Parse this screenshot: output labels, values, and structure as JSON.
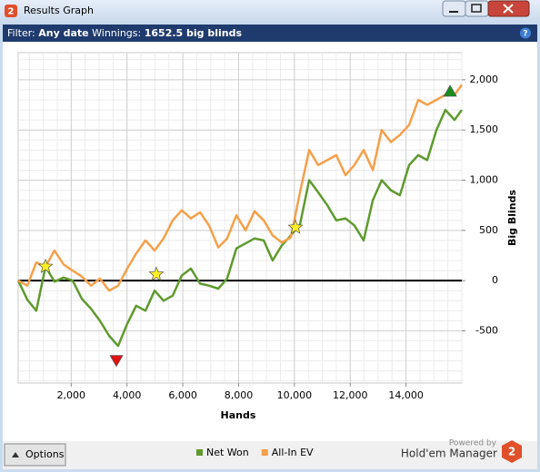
{
  "window": {
    "title": "Results Graph"
  },
  "filter": {
    "label": "Filter:",
    "date": "Any date",
    "winnings_label": "Winnings:",
    "winnings": "1652.5 big blinds"
  },
  "chart_data": {
    "type": "line",
    "x_label": "Hands",
    "y_label": "Big Blinds",
    "x": [
      100,
      430,
      750,
      1080,
      1400,
      1730,
      2050,
      2380,
      2710,
      3030,
      3360,
      3680,
      4010,
      4330,
      4660,
      4990,
      5310,
      5640,
      5960,
      6290,
      6620,
      6940,
      7270,
      7590,
      7920,
      8250,
      8570,
      8900,
      9220,
      9550,
      9870,
      10200,
      10530,
      10850,
      11180,
      11500,
      11830,
      12150,
      12480,
      12810,
      13130,
      13460,
      13780,
      14110,
      14440,
      14760,
      15090,
      15410,
      15740,
      16000
    ],
    "series": [
      {
        "name": "Net Won",
        "color": "#5f9a2f",
        "values": [
          0,
          -190,
          -300,
          140,
          -10,
          30,
          0,
          -180,
          -280,
          -400,
          -550,
          -650,
          -430,
          -250,
          -300,
          -100,
          -200,
          -150,
          50,
          120,
          -30,
          -50,
          -80,
          20,
          320,
          370,
          420,
          400,
          200,
          350,
          450,
          560,
          1000,
          880,
          750,
          600,
          620,
          550,
          400,
          800,
          1000,
          900,
          850,
          1150,
          1250,
          1200,
          1500,
          1700,
          1600,
          1700
        ]
      },
      {
        "name": "All-In EV",
        "color": "#f5a04a",
        "values": [
          0,
          -50,
          180,
          140,
          300,
          160,
          100,
          40,
          -50,
          20,
          -100,
          -50,
          120,
          270,
          400,
          300,
          420,
          600,
          700,
          620,
          680,
          550,
          330,
          420,
          650,
          500,
          690,
          600,
          450,
          380,
          430,
          880,
          1300,
          1150,
          1200,
          1250,
          1050,
          1150,
          1300,
          1100,
          1500,
          1380,
          1450,
          1550,
          1800,
          1750,
          1800,
          1850,
          1850,
          1950
        ]
      }
    ],
    "markers": [
      {
        "shape": "star",
        "color": "#ffee22",
        "x": 1080,
        "y": 140
      },
      {
        "shape": "star",
        "color": "#ffee22",
        "x": 5050,
        "y": 63
      },
      {
        "shape": "star",
        "color": "#ffee22",
        "x": 10040,
        "y": 530
      },
      {
        "shape": "down-triangle",
        "color": "#e01010",
        "x": 3620,
        "y": -800
      },
      {
        "shape": "up-triangle",
        "color": "#1a8a1a",
        "x": 15580,
        "y": 1890
      }
    ],
    "xlim": [
      100,
      16000
    ],
    "xticks": [
      {
        "value": 2000,
        "label": "2,000"
      },
      {
        "value": 4000,
        "label": "4,000"
      },
      {
        "value": 6000,
        "label": "6,000"
      },
      {
        "value": 8000,
        "label": "8,000"
      },
      {
        "value": 10000,
        "label": "10,000"
      },
      {
        "value": 12000,
        "label": "12,000"
      },
      {
        "value": 14000,
        "label": "14,000"
      }
    ],
    "ylim": [
      -1020,
      2270
    ],
    "yticks": [
      -500,
      0,
      500,
      {
        "value": 1000,
        "label": "1,000"
      },
      {
        "value": 1500,
        "label": "1,500"
      },
      {
        "value": 2000,
        "label": "2,000"
      }
    ],
    "grid": true,
    "zero_line": true
  },
  "footer": {
    "options": "Options",
    "powered_by": "Powered by",
    "brand": "Hold'em Manager",
    "logo": "2"
  }
}
